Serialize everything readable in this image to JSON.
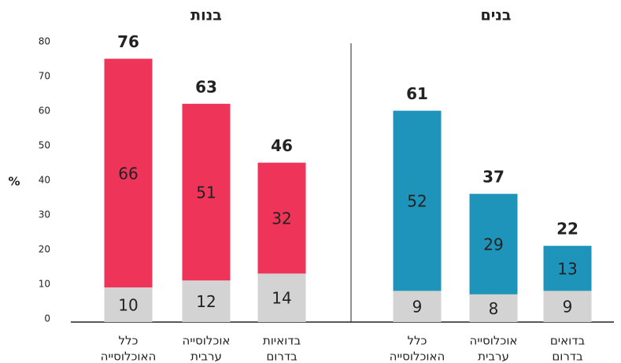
{
  "chart_data": [
    {
      "type": "stacked_bar",
      "title": "בנות",
      "title_color": "#ee3458",
      "ylabel": "%",
      "ylim": [
        0,
        80
      ],
      "yticks": [
        0,
        10,
        20,
        30,
        40,
        50,
        60,
        70,
        80
      ],
      "categories": [
        [
          "כלל",
          "האוכלוסייה"
        ],
        [
          "אוכלוסייה",
          "ערבית"
        ],
        [
          "בדואיות",
          "בדרום"
        ]
      ],
      "series": [
        {
          "color": "#d3d3d3",
          "values": [
            10,
            12,
            14
          ]
        },
        {
          "color": "#ee3458",
          "values": [
            66,
            51,
            32
          ]
        }
      ],
      "totals": [
        76,
        63,
        46
      ]
    },
    {
      "type": "stacked_bar",
      "title": "בנים",
      "title_color": "#1f94bb",
      "categories": [
        [
          "כלל",
          "האוכלוסייה"
        ],
        [
          "אוכלוסייה",
          "ערבית"
        ],
        [
          "בדואים",
          "בדרום"
        ]
      ],
      "series": [
        {
          "color": "#d3d3d3",
          "values": [
            9,
            8,
            9
          ]
        },
        {
          "color": "#1f94bb",
          "values": [
            52,
            29,
            13
          ]
        }
      ],
      "totals": [
        61,
        37,
        22
      ]
    }
  ]
}
